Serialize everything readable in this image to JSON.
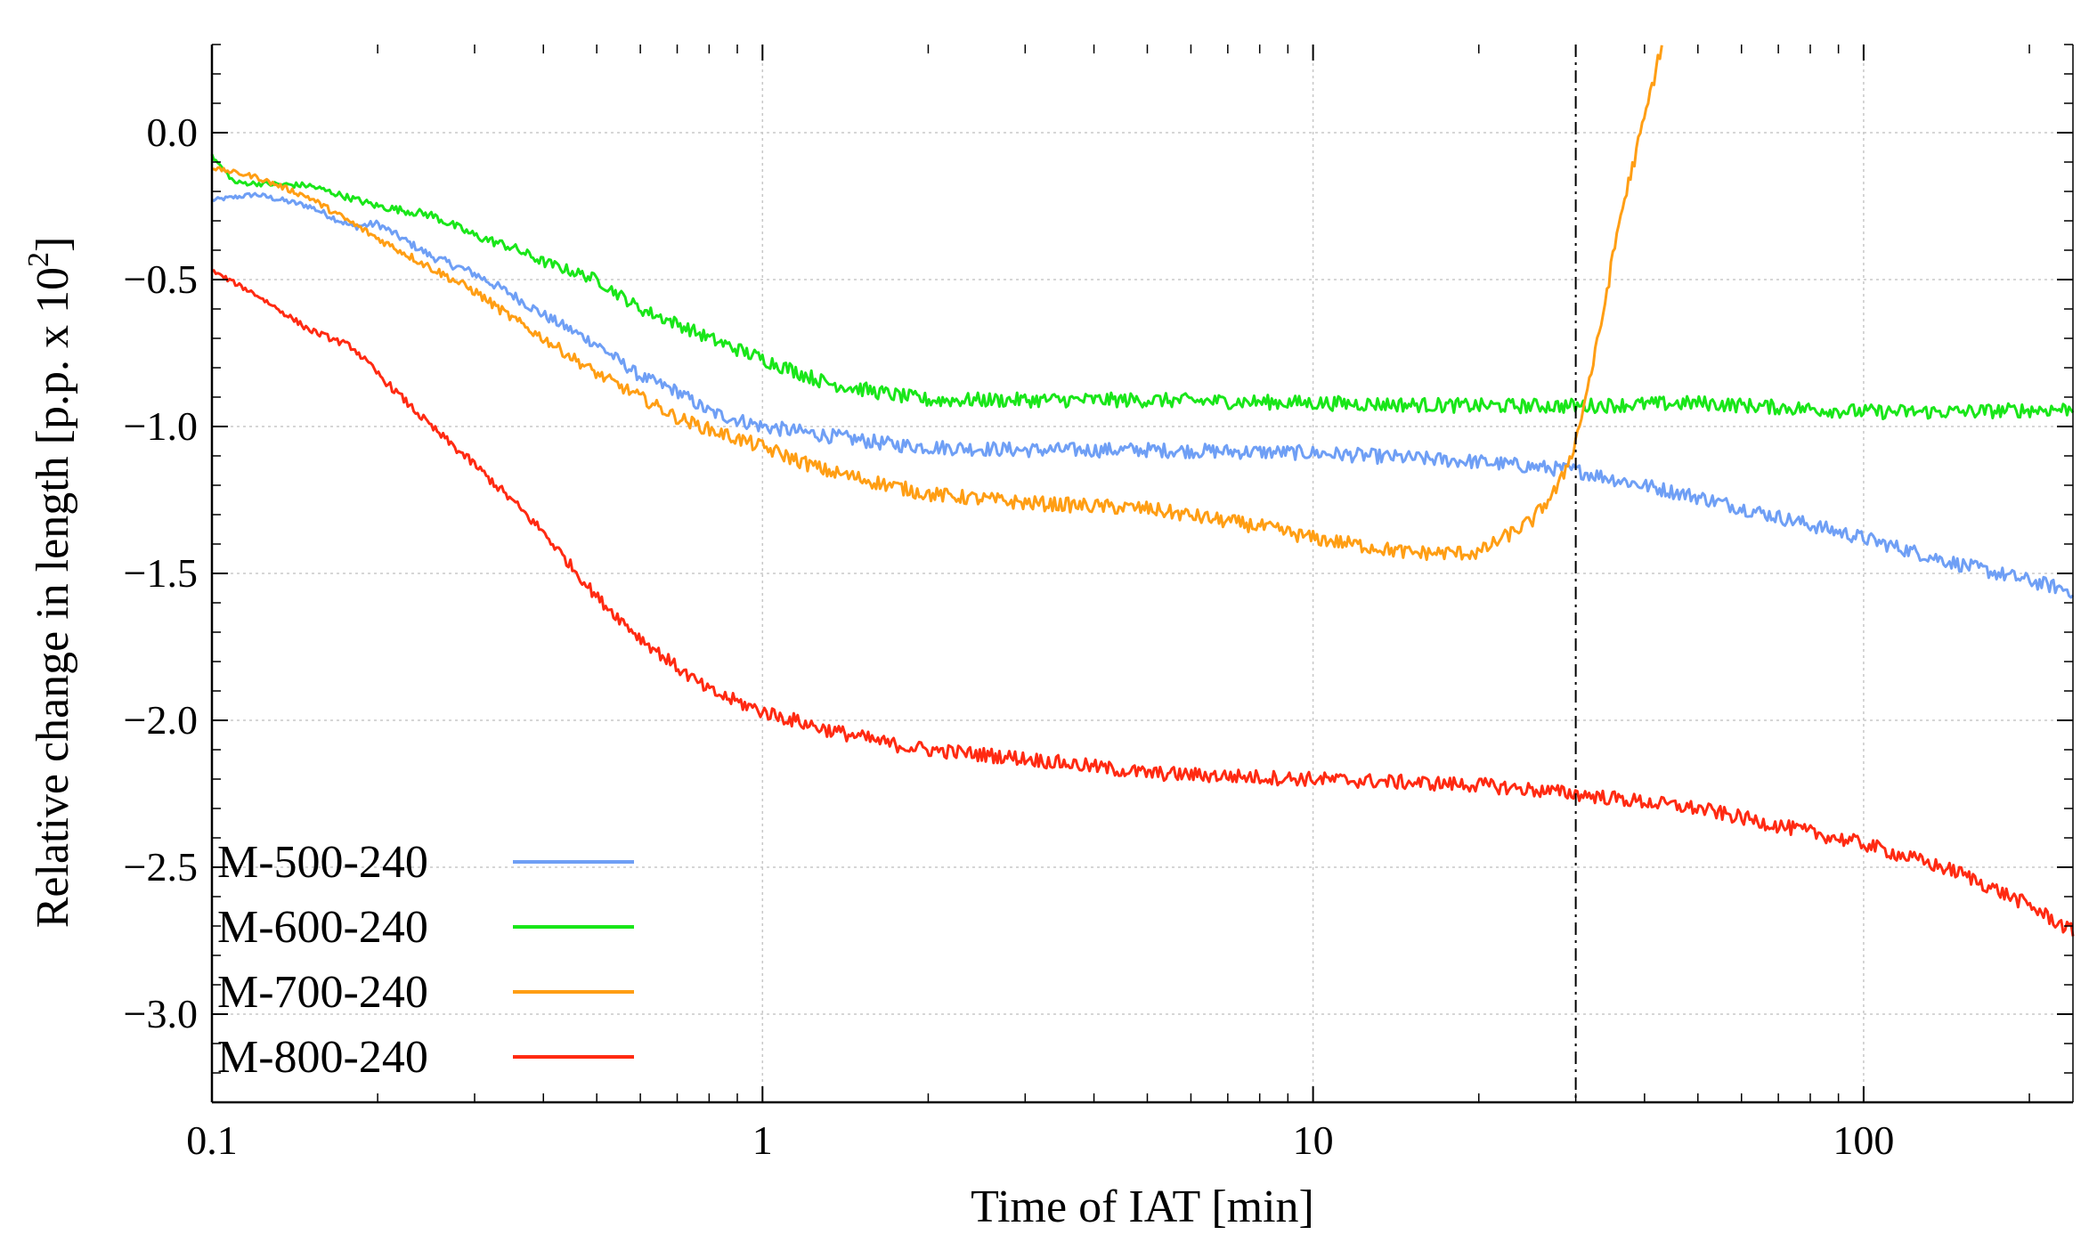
{
  "chart_data": {
    "type": "line",
    "xlabel": "Time of IAT [min]",
    "ylabel_main": "Relative change in length [p.p. x 10",
    "ylabel_sup": "2",
    "ylabel_tail": "]",
    "x_scale": "log",
    "xlim": [
      0.1,
      240
    ],
    "ylim": [
      -3.3,
      0.3
    ],
    "grid": true,
    "legend_position": "lower-left",
    "x_ticks": [
      {
        "value": 0.1,
        "label": "0.1"
      },
      {
        "value": 1,
        "label": "1"
      },
      {
        "value": 10,
        "label": "10"
      },
      {
        "value": 100,
        "label": "100"
      }
    ],
    "y_ticks": [
      {
        "value": 0.0,
        "label": "0.0"
      },
      {
        "value": -0.5,
        "label": "−0.5"
      },
      {
        "value": -1.0,
        "label": "−1.0"
      },
      {
        "value": -1.5,
        "label": "−1.5"
      },
      {
        "value": -2.0,
        "label": "−2.0"
      },
      {
        "value": -2.5,
        "label": "−2.5"
      },
      {
        "value": -3.0,
        "label": "−3.0"
      }
    ],
    "vline_x": 30,
    "series": [
      {
        "name": "M-500-240",
        "color": "#6f9ff5",
        "noise": 0.025,
        "x": [
          0.1,
          0.12,
          0.15,
          0.18,
          0.2,
          0.25,
          0.3,
          0.35,
          0.4,
          0.5,
          0.6,
          0.7,
          0.8,
          1,
          1.3,
          1.7,
          2,
          3,
          5,
          10,
          20,
          30,
          50,
          100,
          150,
          240
        ],
        "y": [
          -0.23,
          -0.21,
          -0.25,
          -0.32,
          -0.31,
          -0.42,
          -0.48,
          -0.55,
          -0.62,
          -0.72,
          -0.83,
          -0.88,
          -0.95,
          -1.0,
          -1.03,
          -1.06,
          -1.07,
          -1.08,
          -1.08,
          -1.09,
          -1.12,
          -1.15,
          -1.24,
          -1.38,
          -1.47,
          -1.56
        ]
      },
      {
        "name": "M-600-240",
        "color": "#19e619",
        "noise": 0.025,
        "x": [
          0.1,
          0.11,
          0.15,
          0.2,
          0.25,
          0.3,
          0.35,
          0.4,
          0.5,
          0.6,
          0.7,
          0.8,
          1,
          1.3,
          1.7,
          2,
          3,
          5,
          10,
          20,
          30,
          50,
          100,
          150,
          240
        ],
        "y": [
          -0.08,
          -0.17,
          -0.18,
          -0.25,
          -0.28,
          -0.35,
          -0.39,
          -0.44,
          -0.5,
          -0.6,
          -0.65,
          -0.7,
          -0.77,
          -0.85,
          -0.89,
          -0.91,
          -0.91,
          -0.91,
          -0.92,
          -0.93,
          -0.93,
          -0.92,
          -0.95,
          -0.95,
          -0.94
        ]
      },
      {
        "name": "M-700-240",
        "color": "#ff9e14",
        "noise": 0.025,
        "x": [
          0.1,
          0.12,
          0.15,
          0.2,
          0.25,
          0.3,
          0.35,
          0.4,
          0.5,
          0.6,
          0.7,
          0.8,
          1,
          1.3,
          1.7,
          2,
          3,
          5,
          8,
          10,
          15,
          20,
          25,
          28,
          30,
          33,
          36,
          40,
          43
        ],
        "y": [
          -0.12,
          -0.15,
          -0.22,
          -0.36,
          -0.46,
          -0.54,
          -0.63,
          -0.7,
          -0.82,
          -0.9,
          -0.97,
          -1.01,
          -1.07,
          -1.15,
          -1.2,
          -1.23,
          -1.26,
          -1.28,
          -1.34,
          -1.38,
          -1.43,
          -1.43,
          -1.32,
          -1.2,
          -1.05,
          -0.7,
          -0.3,
          0.05,
          0.3
        ]
      },
      {
        "name": "M-800-240",
        "color": "#ff2a12",
        "noise": 0.025,
        "x": [
          0.1,
          0.12,
          0.15,
          0.18,
          0.2,
          0.25,
          0.3,
          0.35,
          0.4,
          0.5,
          0.6,
          0.7,
          0.8,
          1,
          1.3,
          1.7,
          2,
          3,
          5,
          10,
          20,
          30,
          50,
          100,
          150,
          200,
          240
        ],
        "y": [
          -0.47,
          -0.55,
          -0.67,
          -0.73,
          -0.82,
          -1.0,
          -1.13,
          -1.25,
          -1.36,
          -1.58,
          -1.72,
          -1.82,
          -1.9,
          -1.97,
          -2.03,
          -2.08,
          -2.1,
          -2.13,
          -2.18,
          -2.2,
          -2.22,
          -2.25,
          -2.3,
          -2.42,
          -2.52,
          -2.63,
          -2.72
        ]
      }
    ]
  }
}
